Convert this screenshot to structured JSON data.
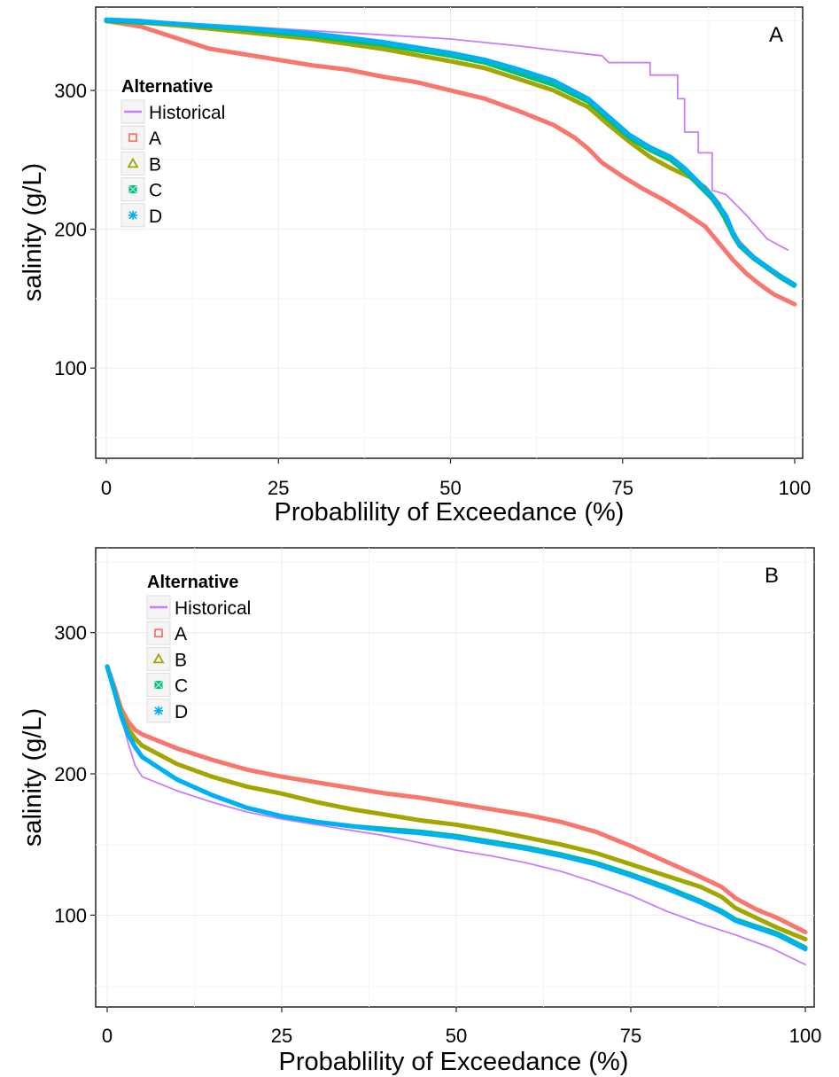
{
  "colors": {
    "Historical": "#C77CFF",
    "A": "#F8766D",
    "B": "#A3A500",
    "C": "#00BF7D",
    "D": "#00B0F6"
  },
  "chart_data": [
    {
      "type": "line",
      "panel_label": "A",
      "xlabel": "Probablility of Exceedance (%)",
      "ylabel": "salinity (g/L)",
      "xlim": [
        0,
        100
      ],
      "ylim": [
        35,
        360
      ],
      "xticks": [
        0,
        25,
        50,
        75,
        100
      ],
      "yticks": [
        100,
        200,
        300
      ],
      "grid": true,
      "legend": {
        "title": "Alternative",
        "placement": "top-left",
        "entries": [
          "Historical",
          "A",
          "B",
          "C",
          "D"
        ]
      },
      "series": [
        {
          "name": "Historical",
          "style": "line",
          "points": [
            [
              0,
              350
            ],
            [
              10,
              348
            ],
            [
              20,
              346
            ],
            [
              30,
              343
            ],
            [
              40,
              340
            ],
            [
              50,
              337
            ],
            [
              60,
              332
            ],
            [
              70,
              326
            ],
            [
              72,
              325
            ],
            [
              73,
              320
            ],
            [
              79,
              320
            ],
            [
              79,
              311
            ],
            [
              83,
              311
            ],
            [
              83,
              294
            ],
            [
              84,
              294
            ],
            [
              84,
              270
            ],
            [
              86,
              270
            ],
            [
              86,
              255
            ],
            [
              88,
              255
            ],
            [
              88,
              228
            ],
            [
              90,
              225
            ],
            [
              93,
              210
            ],
            [
              96,
              193
            ],
            [
              99,
              185
            ]
          ]
        },
        {
          "name": "A",
          "style": "marker",
          "points": [
            [
              0,
              350
            ],
            [
              5,
              346
            ],
            [
              10,
              338
            ],
            [
              15,
              330
            ],
            [
              20,
              326
            ],
            [
              25,
              322
            ],
            [
              30,
              318
            ],
            [
              35,
              315
            ],
            [
              40,
              310
            ],
            [
              45,
              306
            ],
            [
              50,
              300
            ],
            [
              55,
              294
            ],
            [
              60,
              285
            ],
            [
              65,
              275
            ],
            [
              68,
              266
            ],
            [
              70,
              258
            ],
            [
              72,
              248
            ],
            [
              75,
              238
            ],
            [
              78,
              229
            ],
            [
              81,
              221
            ],
            [
              84,
              212
            ],
            [
              87,
              202
            ],
            [
              89,
              190
            ],
            [
              91,
              178
            ],
            [
              93,
              168
            ],
            [
              95,
              160
            ],
            [
              97,
              153
            ],
            [
              100,
              146
            ]
          ]
        },
        {
          "name": "B",
          "style": "marker",
          "points": [
            [
              0,
              350
            ],
            [
              5,
              349
            ],
            [
              10,
              347
            ],
            [
              20,
              342
            ],
            [
              30,
              337
            ],
            [
              40,
              330
            ],
            [
              50,
              321
            ],
            [
              55,
              316
            ],
            [
              60,
              308
            ],
            [
              65,
              300
            ],
            [
              70,
              288
            ],
            [
              73,
              275
            ],
            [
              76,
              263
            ],
            [
              79,
              252
            ],
            [
              82,
              244
            ],
            [
              85,
              237
            ],
            [
              87,
              230
            ],
            [
              89,
              218
            ],
            [
              90,
              206
            ],
            [
              91,
              197
            ],
            [
              92,
              190
            ],
            [
              94,
              180
            ],
            [
              96,
              172
            ],
            [
              98,
              165
            ],
            [
              100,
              160
            ]
          ]
        },
        {
          "name": "C",
          "style": "marker",
          "points": [
            [
              0,
              350
            ],
            [
              5,
              349
            ],
            [
              10,
              348
            ],
            [
              20,
              344
            ],
            [
              30,
              339
            ],
            [
              40,
              333
            ],
            [
              50,
              325
            ],
            [
              55,
              320
            ],
            [
              60,
              312
            ],
            [
              65,
              304
            ],
            [
              70,
              292
            ],
            [
              73,
              279
            ],
            [
              76,
              266
            ],
            [
              79,
              257
            ],
            [
              82,
              250
            ],
            [
              84,
              242
            ],
            [
              86,
              232
            ],
            [
              88,
              222
            ],
            [
              89,
              215
            ],
            [
              90,
              207
            ],
            [
              91,
              196
            ],
            [
              92,
              188
            ],
            [
              94,
              179
            ],
            [
              96,
              172
            ],
            [
              98,
              165
            ],
            [
              100,
              159
            ]
          ]
        },
        {
          "name": "D",
          "style": "marker",
          "points": [
            [
              0,
              351
            ],
            [
              5,
              350
            ],
            [
              10,
              348
            ],
            [
              20,
              345
            ],
            [
              30,
              341
            ],
            [
              40,
              335
            ],
            [
              50,
              327
            ],
            [
              55,
              322
            ],
            [
              60,
              315
            ],
            [
              65,
              307
            ],
            [
              70,
              294
            ],
            [
              73,
              281
            ],
            [
              76,
              268
            ],
            [
              79,
              259
            ],
            [
              82,
              252
            ],
            [
              84,
              244
            ],
            [
              86,
              234
            ],
            [
              88,
              224
            ],
            [
              89,
              217
            ],
            [
              90,
              210
            ],
            [
              91,
              198
            ],
            [
              92,
              189
            ],
            [
              94,
              180
            ],
            [
              96,
              173
            ],
            [
              98,
              166
            ],
            [
              100,
              160
            ]
          ]
        }
      ]
    },
    {
      "type": "line",
      "panel_label": "B",
      "xlabel": "Probablility of Exceedance (%)",
      "ylabel": "salinity (g/L)",
      "xlim": [
        0,
        100
      ],
      "ylim": [
        35,
        360
      ],
      "xticks": [
        0,
        25,
        50,
        75,
        100
      ],
      "yticks": [
        100,
        200,
        300
      ],
      "grid": true,
      "legend": {
        "title": "Alternative",
        "placement": "top-left",
        "entries": [
          "Historical",
          "A",
          "B",
          "C",
          "D"
        ]
      },
      "series": [
        {
          "name": "Historical",
          "style": "line",
          "points": [
            [
              0,
              276
            ],
            [
              1,
              258
            ],
            [
              2,
              240
            ],
            [
              3,
              222
            ],
            [
              4,
              206
            ],
            [
              5,
              198
            ],
            [
              10,
              188
            ],
            [
              15,
              180
            ],
            [
              20,
              173
            ],
            [
              25,
              168
            ],
            [
              30,
              164
            ],
            [
              35,
              160
            ],
            [
              40,
              156
            ],
            [
              45,
              151
            ],
            [
              50,
              146
            ],
            [
              55,
              142
            ],
            [
              60,
              137
            ],
            [
              65,
              131
            ],
            [
              70,
              123
            ],
            [
              75,
              114
            ],
            [
              80,
              103
            ],
            [
              85,
              94
            ],
            [
              90,
              86
            ],
            [
              95,
              77
            ],
            [
              100,
              65
            ]
          ]
        },
        {
          "name": "A",
          "style": "marker",
          "points": [
            [
              0,
              276
            ],
            [
              1,
              262
            ],
            [
              2,
              246
            ],
            [
              3,
              237
            ],
            [
              4,
              231
            ],
            [
              5,
              228
            ],
            [
              10,
              218
            ],
            [
              15,
              210
            ],
            [
              20,
              203
            ],
            [
              25,
              198
            ],
            [
              30,
              194
            ],
            [
              35,
              190
            ],
            [
              40,
              186
            ],
            [
              45,
              183
            ],
            [
              50,
              179
            ],
            [
              55,
              175
            ],
            [
              60,
              171
            ],
            [
              65,
              166
            ],
            [
              70,
              159
            ],
            [
              75,
              149
            ],
            [
              80,
              138
            ],
            [
              85,
              127
            ],
            [
              88,
              120
            ],
            [
              90,
              112
            ],
            [
              93,
              104
            ],
            [
              96,
              98
            ],
            [
              100,
              88
            ]
          ]
        },
        {
          "name": "B",
          "style": "marker",
          "points": [
            [
              0,
              276
            ],
            [
              1,
              260
            ],
            [
              2,
              243
            ],
            [
              3,
              232
            ],
            [
              4,
              225
            ],
            [
              5,
              220
            ],
            [
              10,
              207
            ],
            [
              15,
              198
            ],
            [
              20,
              191
            ],
            [
              25,
              186
            ],
            [
              30,
              180
            ],
            [
              35,
              175
            ],
            [
              40,
              171
            ],
            [
              45,
              167
            ],
            [
              50,
              164
            ],
            [
              55,
              160
            ],
            [
              60,
              155
            ],
            [
              65,
              150
            ],
            [
              70,
              144
            ],
            [
              75,
              136
            ],
            [
              80,
              128
            ],
            [
              85,
              120
            ],
            [
              88,
              113
            ],
            [
              90,
              105
            ],
            [
              93,
              98
            ],
            [
              96,
              91
            ],
            [
              100,
              83
            ]
          ]
        },
        {
          "name": "C",
          "style": "marker",
          "points": [
            [
              0,
              276
            ],
            [
              1,
              259
            ],
            [
              2,
              241
            ],
            [
              3,
              228
            ],
            [
              4,
              219
            ],
            [
              5,
              212
            ],
            [
              10,
              196
            ],
            [
              15,
              185
            ],
            [
              20,
              176
            ],
            [
              25,
              170
            ],
            [
              30,
              166
            ],
            [
              35,
              163
            ],
            [
              40,
              161
            ],
            [
              45,
              159
            ],
            [
              50,
              156
            ],
            [
              55,
              152
            ],
            [
              60,
              148
            ],
            [
              65,
              143
            ],
            [
              70,
              137
            ],
            [
              75,
              129
            ],
            [
              80,
              120
            ],
            [
              85,
              110
            ],
            [
              88,
              103
            ],
            [
              90,
              97
            ],
            [
              93,
              92
            ],
            [
              96,
              87
            ],
            [
              100,
              77
            ]
          ]
        },
        {
          "name": "D",
          "style": "marker",
          "points": [
            [
              0,
              276
            ],
            [
              1,
              259
            ],
            [
              2,
              241
            ],
            [
              3,
              228
            ],
            [
              4,
              219
            ],
            [
              5,
              212
            ],
            [
              10,
              196
            ],
            [
              15,
              185
            ],
            [
              20,
              176
            ],
            [
              25,
              170
            ],
            [
              30,
              166
            ],
            [
              35,
              163
            ],
            [
              40,
              160
            ],
            [
              45,
              158
            ],
            [
              50,
              155
            ],
            [
              55,
              151
            ],
            [
              60,
              147
            ],
            [
              65,
              142
            ],
            [
              70,
              136
            ],
            [
              75,
              128
            ],
            [
              80,
              119
            ],
            [
              85,
              109
            ],
            [
              88,
              102
            ],
            [
              90,
              96
            ],
            [
              93,
              91
            ],
            [
              96,
              86
            ],
            [
              100,
              76
            ]
          ]
        }
      ]
    }
  ]
}
